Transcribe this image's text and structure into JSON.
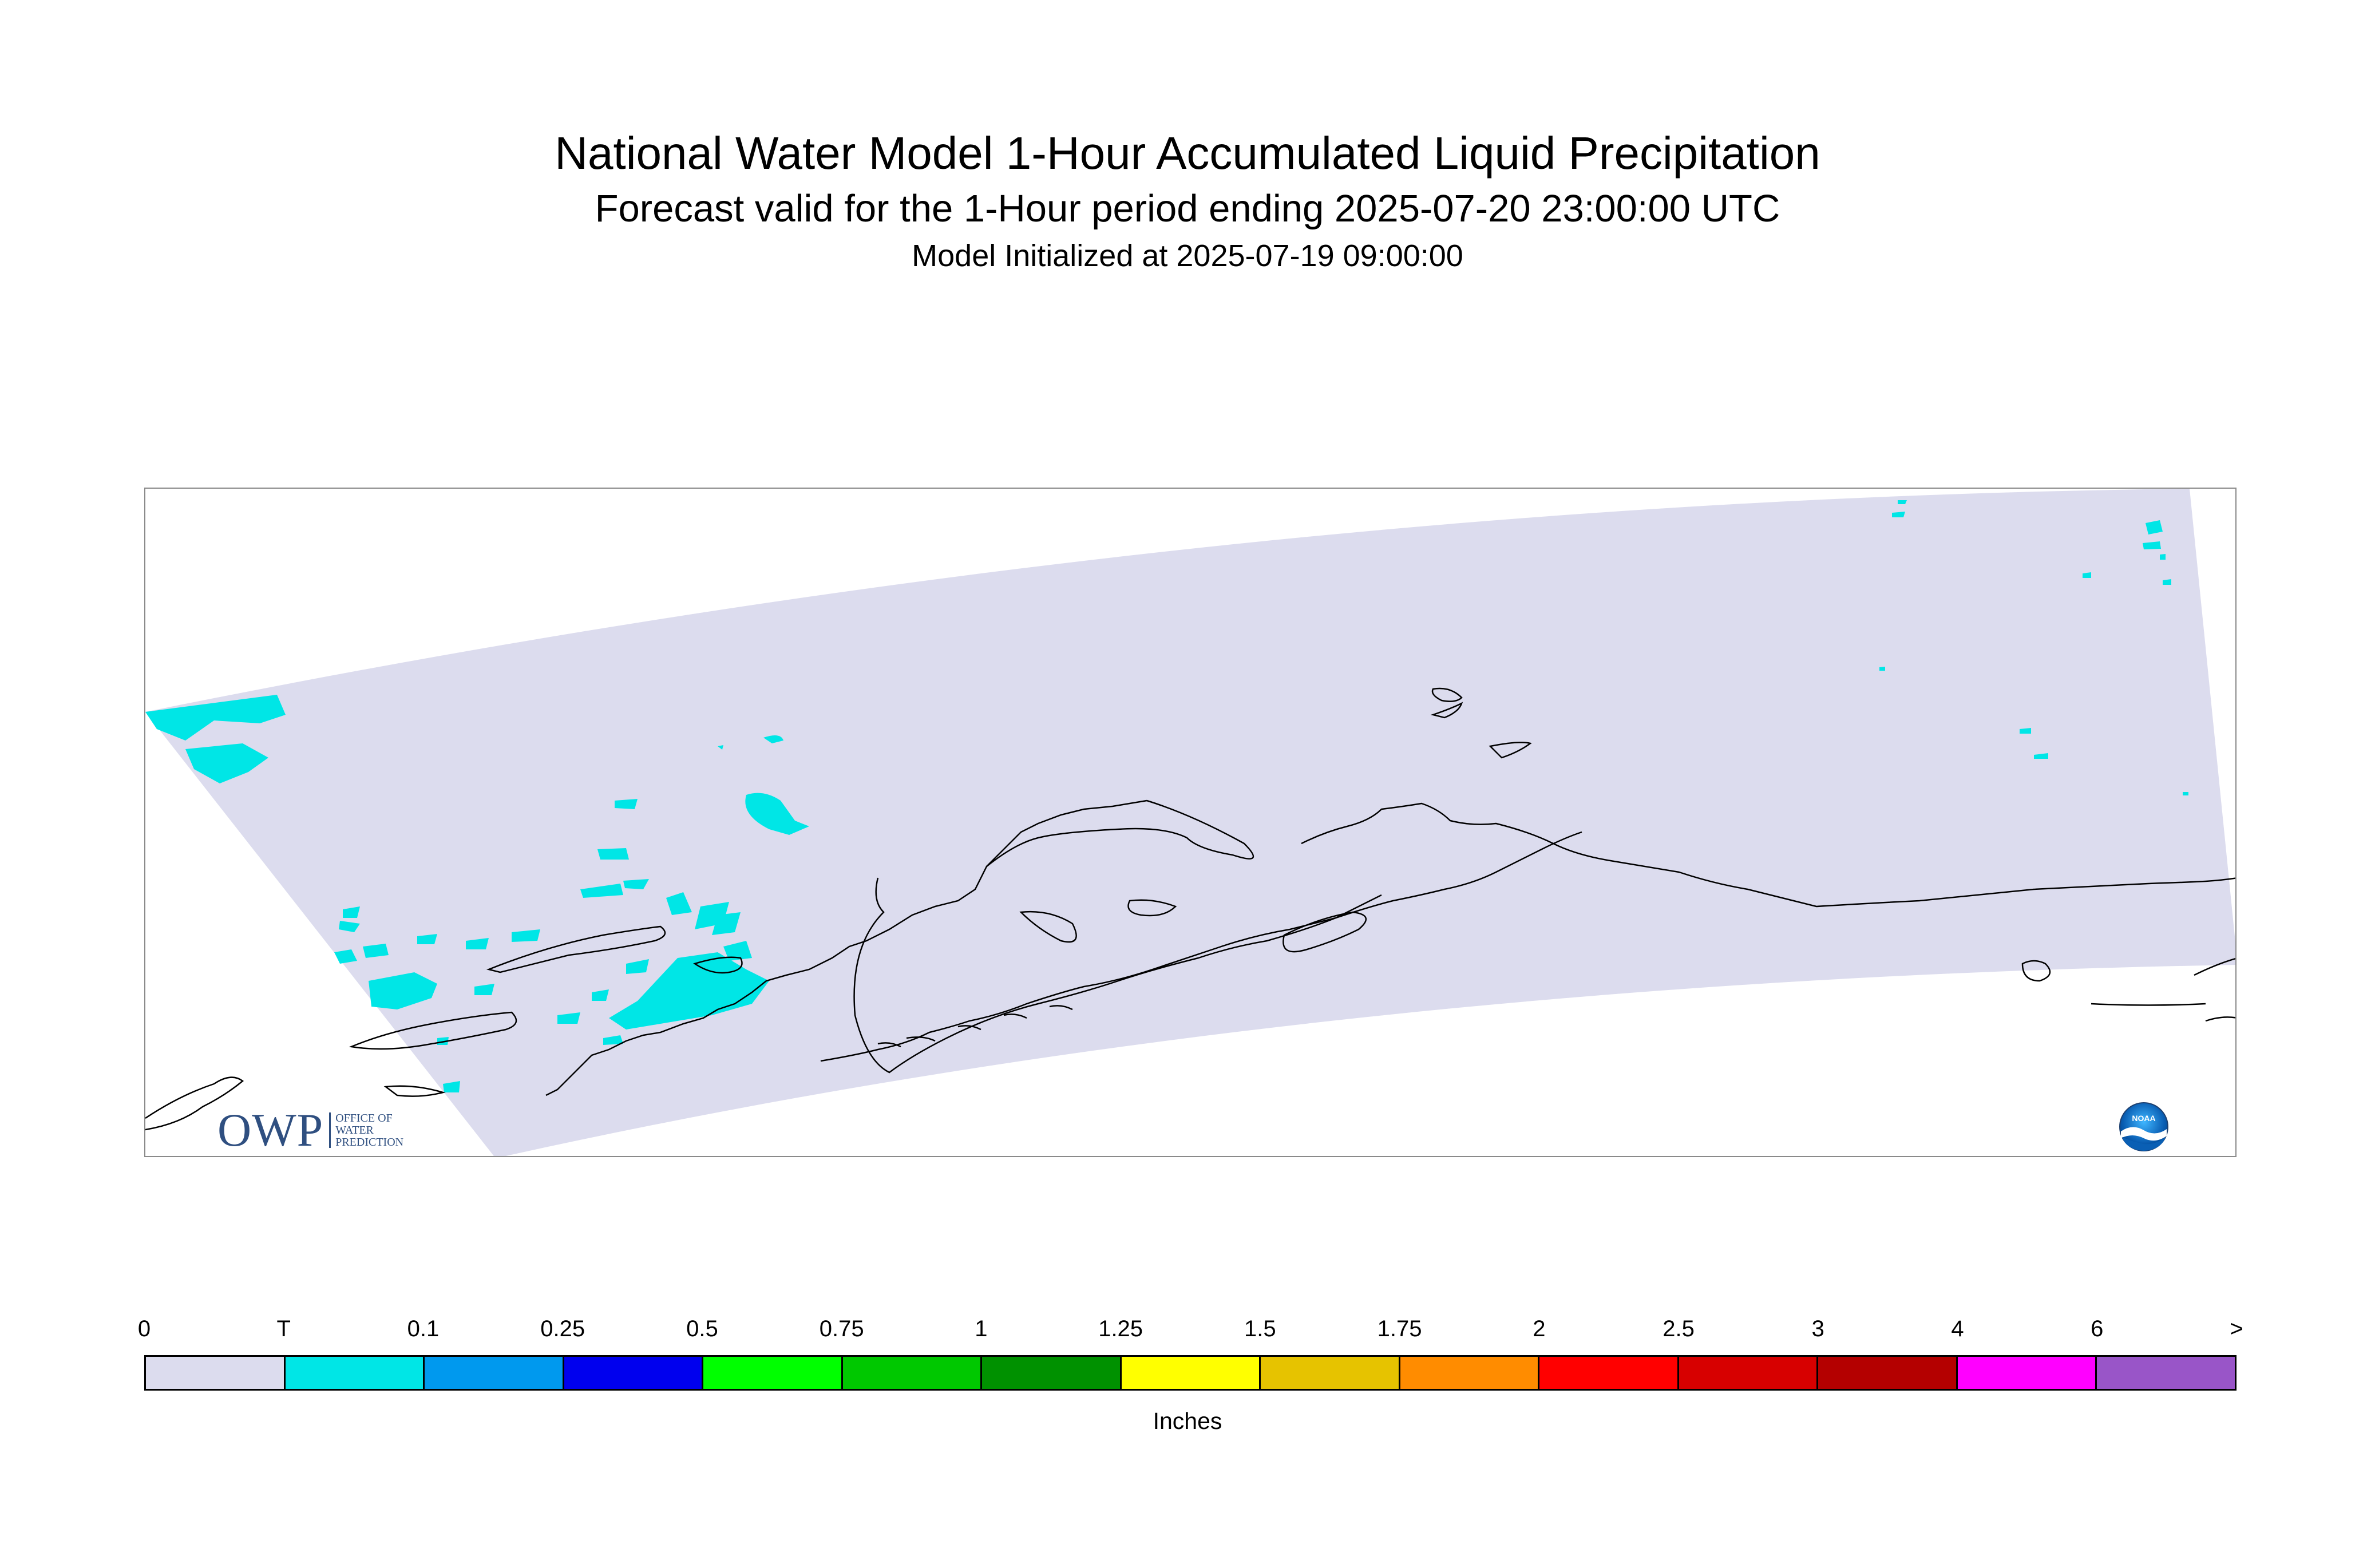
{
  "title": {
    "main": "National Water Model 1-Hour Accumulated Liquid Precipitation",
    "sub": "Forecast valid for the 1-Hour period ending 2025-07-20 23:00:00 UTC",
    "init": "Model Initialized at 2025-07-19 09:00:00"
  },
  "map": {
    "region": "Alaska",
    "domain_fill_color": "#dcdcee",
    "precip_color": "#00e6e6",
    "coastline_color": "#000000"
  },
  "logos": {
    "owp": {
      "text": "OWP",
      "subtitle_lines": [
        "OFFICE OF",
        "WATER",
        "PREDICTION"
      ]
    },
    "noaa": {
      "text": "NOAA",
      "icon": "noaa-logo-icon"
    }
  },
  "legend": {
    "labels": [
      "0",
      "T",
      "0.1",
      "0.25",
      "0.5",
      "0.75",
      "1",
      "1.25",
      "1.5",
      "1.75",
      "2",
      "2.5",
      "3",
      "4",
      "6",
      ">"
    ],
    "colors": [
      "#dcdcee",
      "#00e6e6",
      "#0099ee",
      "#0000ee",
      "#00ff00",
      "#00c800",
      "#009100",
      "#ffff00",
      "#e6c300",
      "#ff8c00",
      "#ff0000",
      "#d70000",
      "#b40000",
      "#ff00ff",
      "#9955c8"
    ],
    "units": "Inches"
  }
}
